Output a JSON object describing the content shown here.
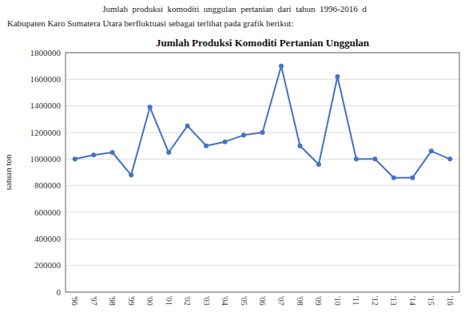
{
  "chart_data": {
    "type": "line",
    "title": "Jumlah Produksi Komoditi Pertanian Unggulan",
    "ylabel": "satuan ton",
    "annotations": [
      "Jumlah  produksi  komoditi  unggulan  pertanian  dari  tahun  1996-2016  d",
      "Kabupaten Karo Sumatera Utara berfluktuasi sebagai terlihat pada grafik berikut:"
    ],
    "categories": [
      "'96",
      "'97",
      "'98",
      "'99",
      "'00",
      "'01",
      "'02",
      "'03",
      "'04",
      "'05",
      "'06",
      "'07",
      "'08",
      "'09",
      "'10",
      "'11",
      "'12",
      "'13",
      "'14",
      "'15",
      "'16"
    ],
    "values": [
      1000000,
      1030000,
      1050000,
      880000,
      1390000,
      1050000,
      1250000,
      1100000,
      1130000,
      1180000,
      1200000,
      1700000,
      1100000,
      960000,
      1620000,
      1000000,
      1000000,
      860000,
      860000,
      1060000,
      1000000
    ],
    "color": "#4472C4",
    "marker": "circle",
    "ylim": [
      0,
      1800000
    ],
    "yticks": [
      0,
      200000,
      400000,
      600000,
      800000,
      1000000,
      1200000,
      1400000,
      1600000,
      1800000
    ],
    "grid": true
  }
}
